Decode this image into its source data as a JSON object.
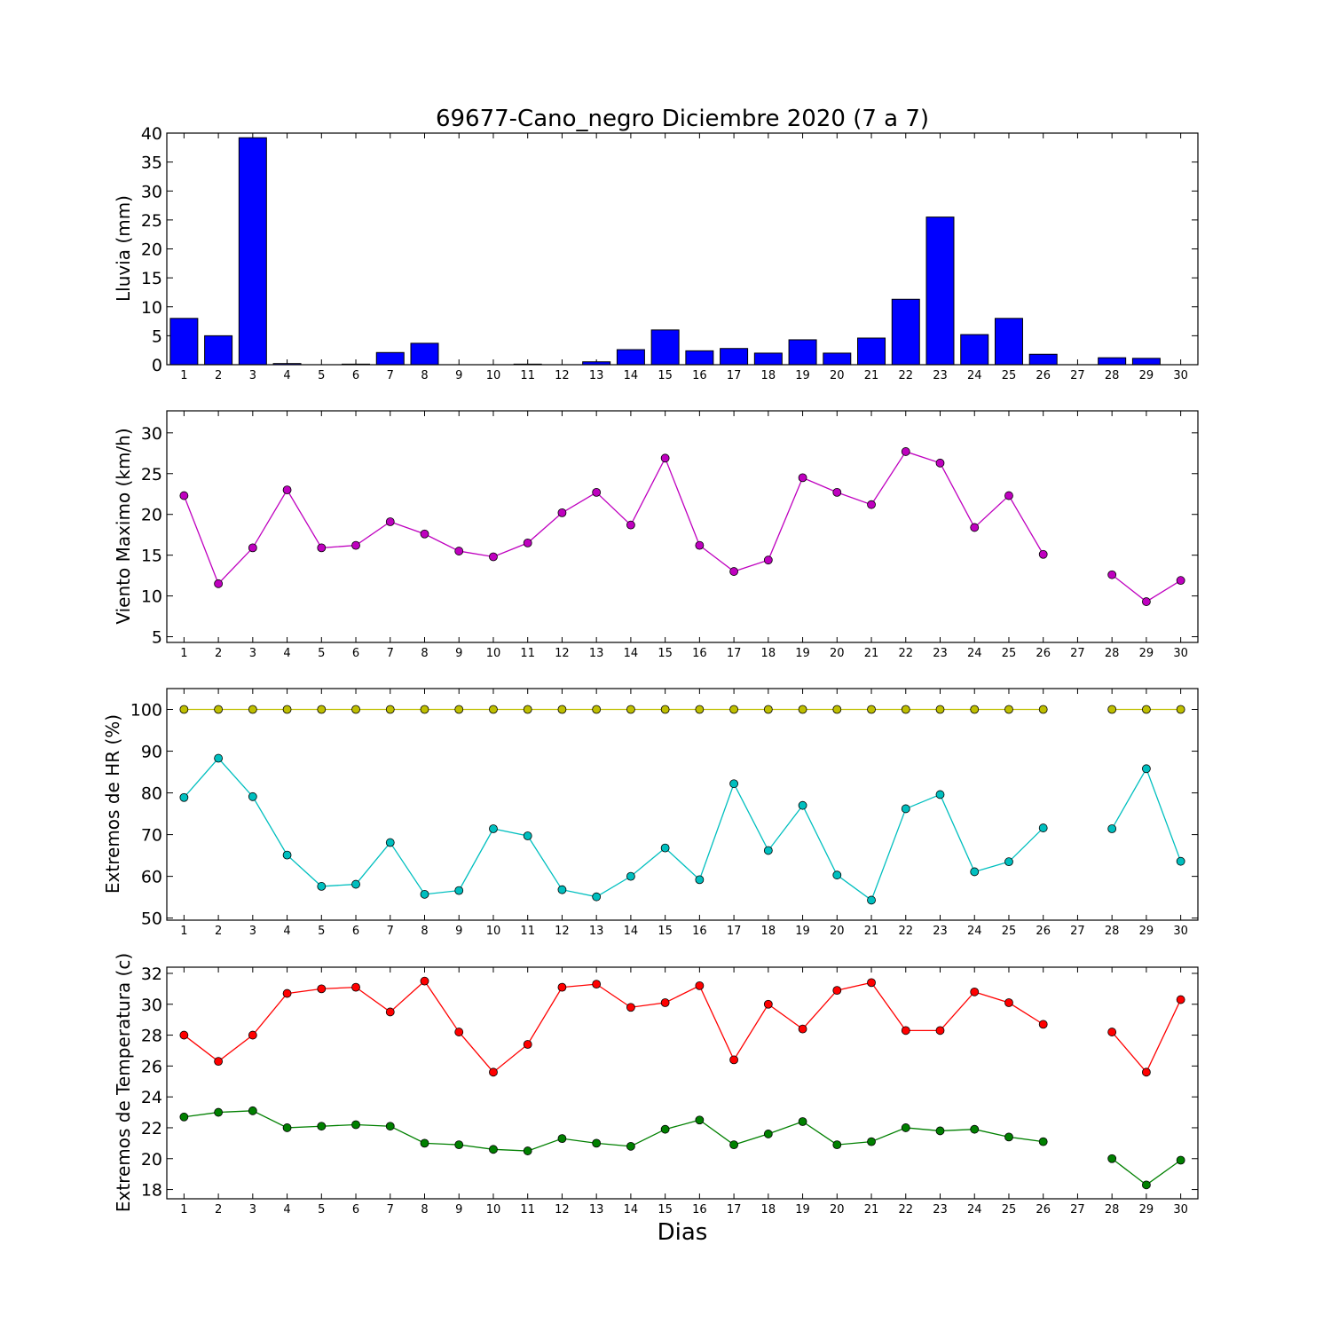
{
  "chart_data": {
    "type": "bar+line",
    "title": "69677-Cano_negro Diciembre 2020  (7 a 7)",
    "xlabel": "Dias",
    "x_ticks": [
      "1",
      "2",
      "3",
      "4",
      "5",
      "6",
      "7",
      "8",
      "9",
      "10",
      "11",
      "12",
      "13",
      "14",
      "15",
      "16",
      "17",
      "18",
      "19",
      "20",
      "21",
      "22",
      "23",
      "24",
      "25",
      "26",
      "27",
      "28",
      "29",
      "30"
    ],
    "panels": [
      {
        "type": "bar",
        "ylabel": "Lluvia (mm)",
        "ylim": [
          0,
          40
        ],
        "yticks": [
          0,
          5,
          10,
          15,
          20,
          25,
          30,
          35,
          40
        ],
        "color": "#0000ff",
        "values": [
          8.0,
          5.0,
          39.2,
          0.2,
          0.0,
          0.1,
          2.1,
          3.7,
          0.0,
          0.0,
          0.1,
          0.0,
          0.5,
          2.6,
          6.0,
          2.4,
          2.8,
          2.0,
          4.3,
          2.0,
          4.6,
          11.3,
          25.5,
          5.2,
          8.0,
          1.8,
          0.0,
          1.2,
          1.1,
          0.0
        ]
      },
      {
        "type": "line",
        "ylabel": "Viento Maximo (km/h)",
        "ylim": [
          4.3,
          32.7
        ],
        "yticks": [
          5,
          10,
          15,
          20,
          25,
          30
        ],
        "series": [
          {
            "color": "#bf00bf",
            "values": [
              22.3,
              11.5,
              15.9,
              23.0,
              15.9,
              16.2,
              19.1,
              17.6,
              15.5,
              14.8,
              16.5,
              20.2,
              22.7,
              18.7,
              26.9,
              16.2,
              13.0,
              14.4,
              24.5,
              22.7,
              21.2,
              27.7,
              26.3,
              18.4,
              22.3,
              15.1,
              null,
              12.6,
              9.3,
              11.9
            ]
          }
        ]
      },
      {
        "type": "line",
        "ylabel": "Extremos de HR (%)",
        "ylim": [
          49.5,
          105
        ],
        "yticks": [
          50,
          60,
          70,
          80,
          90,
          100
        ],
        "series": [
          {
            "color": "#bfbf00",
            "values": [
              100,
              100,
              100,
              100,
              100,
              100,
              100,
              100,
              100,
              100,
              100,
              100,
              100,
              100,
              100,
              100,
              100,
              100,
              100,
              100,
              100,
              100,
              100,
              100,
              100,
              100,
              null,
              100,
              100,
              100
            ]
          },
          {
            "color": "#00bfbf",
            "values": [
              78.9,
              88.3,
              79.1,
              65.1,
              57.6,
              58.1,
              68.1,
              55.7,
              56.6,
              71.4,
              69.7,
              56.8,
              55.1,
              60.0,
              66.8,
              59.2,
              82.2,
              66.2,
              77.0,
              60.3,
              54.3,
              76.2,
              79.6,
              61.1,
              63.5,
              71.6,
              null,
              71.4,
              85.8,
              63.6
            ]
          }
        ]
      },
      {
        "type": "line",
        "ylabel": "Extremos de Temperatura (c)",
        "ylim": [
          17.4,
          32.4
        ],
        "yticks": [
          18,
          20,
          22,
          24,
          26,
          28,
          30,
          32
        ],
        "series": [
          {
            "color": "#ff0000",
            "values": [
              28.0,
              26.3,
              28.0,
              30.7,
              31.0,
              31.1,
              29.5,
              31.5,
              28.2,
              25.6,
              27.4,
              31.1,
              31.3,
              29.8,
              30.1,
              31.2,
              26.4,
              30.0,
              28.4,
              30.9,
              31.4,
              28.3,
              28.3,
              30.8,
              30.1,
              28.7,
              null,
              28.2,
              25.6,
              30.3
            ]
          },
          {
            "color": "#008000",
            "values": [
              22.7,
              23.0,
              23.1,
              22.0,
              22.1,
              22.2,
              22.1,
              21.0,
              20.9,
              20.6,
              20.5,
              21.3,
              21.0,
              20.8,
              21.9,
              22.5,
              20.9,
              21.6,
              22.4,
              20.9,
              21.1,
              22.0,
              21.8,
              21.9,
              21.4,
              21.1,
              null,
              20.0,
              18.3,
              19.9
            ]
          }
        ]
      }
    ]
  }
}
